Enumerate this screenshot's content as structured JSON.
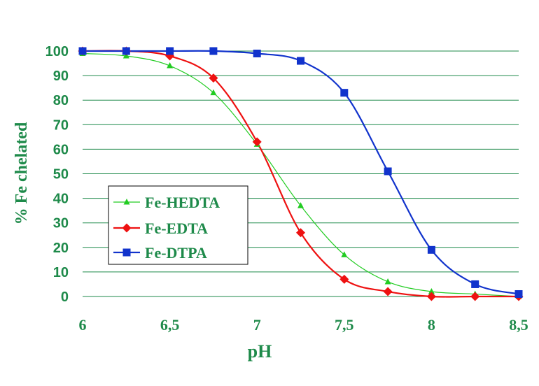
{
  "chart_data": {
    "type": "line",
    "title": "",
    "xlabel": "pH",
    "ylabel": "% Fe chelated",
    "xlim": [
      6,
      8.5
    ],
    "ylim": [
      0,
      100
    ],
    "x_ticks": [
      6,
      6.5,
      7,
      7.5,
      8,
      8.5
    ],
    "x_tick_labels": [
      "6",
      "6,5",
      "7",
      "7,5",
      "8",
      "8,5"
    ],
    "y_ticks": [
      0,
      10,
      20,
      30,
      40,
      50,
      60,
      70,
      80,
      90,
      100
    ],
    "y_tick_labels": [
      "0",
      "10",
      "20",
      "30",
      "40",
      "50",
      "60",
      "70",
      "80",
      "90",
      "100"
    ],
    "grid": "horizontal",
    "legend_position": "left-center",
    "colors": {
      "grid": "#1e8a4a",
      "text": "#1e8a4a"
    },
    "series": [
      {
        "name": "Fe-HEDTA",
        "color": "#22cc22",
        "marker": "triangle",
        "x": [
          6,
          6.25,
          6.5,
          6.75,
          7,
          7.25,
          7.5,
          7.75,
          8,
          8.25,
          8.5
        ],
        "values": [
          99,
          98,
          94,
          83,
          62,
          37,
          17,
          6,
          2,
          1,
          0
        ]
      },
      {
        "name": "Fe-EDTA",
        "color": "#ee1111",
        "marker": "diamond",
        "x": [
          6,
          6.25,
          6.5,
          6.75,
          7,
          7.25,
          7.5,
          7.75,
          8,
          8.25,
          8.5
        ],
        "values": [
          100,
          100,
          98,
          89,
          63,
          26,
          7,
          2,
          0,
          0,
          0
        ]
      },
      {
        "name": "Fe-DTPA",
        "color": "#1133cc",
        "marker": "square",
        "x": [
          6,
          6.25,
          6.5,
          6.75,
          7,
          7.25,
          7.5,
          7.75,
          8,
          8.25,
          8.5
        ],
        "values": [
          100,
          100,
          100,
          100,
          99,
          96,
          83,
          51,
          19,
          5,
          1
        ]
      }
    ]
  }
}
